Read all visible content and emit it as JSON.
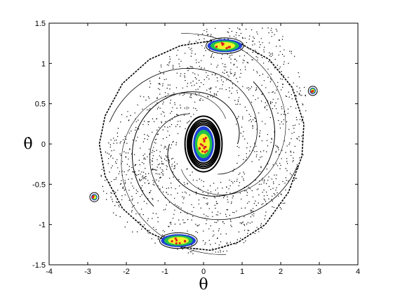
{
  "chart_data": {
    "type": "scatter",
    "title": "",
    "xlabel": "θ",
    "ylabel": "θ̇",
    "xlim": [
      -4,
      4
    ],
    "ylim": [
      -1.5,
      1.5
    ],
    "xticks": [
      "-4",
      "-3",
      "-2",
      "-1",
      "0",
      "1",
      "2",
      "3",
      "4"
    ],
    "yticks": [
      "1.5",
      "1",
      "0.5",
      "0",
      "-0.5",
      "-1",
      "-1.5"
    ],
    "grid": false,
    "colors": {
      "chaotic_sea": "#000000",
      "island_blue": "#1f3fd6",
      "island_green": "#22c24a",
      "island_yellow": "#f2f22a",
      "island_red": "#e02020"
    },
    "series": [
      {
        "color": "#000000",
        "description": "",
        "outer_orbit": [
          [
            0.2,
            1.28
          ],
          [
            -0.6,
            1.22
          ],
          [
            -1.4,
            1.05
          ],
          [
            -2.1,
            0.75
          ],
          [
            -2.55,
            0.35
          ],
          [
            -2.7,
            0.0
          ],
          [
            -2.55,
            -0.4
          ],
          [
            -2.1,
            -0.8
          ],
          [
            -1.4,
            -1.1
          ],
          [
            -0.6,
            -1.28
          ],
          [
            0.2,
            -1.32
          ],
          [
            0.9,
            -1.22
          ],
          [
            1.6,
            -1.0
          ],
          [
            2.2,
            -0.6
          ],
          [
            2.55,
            -0.15
          ],
          [
            2.6,
            0.25
          ],
          [
            2.3,
            0.7
          ],
          [
            1.7,
            1.05
          ],
          [
            0.95,
            1.25
          ],
          [
            0.2,
            1.28
          ]
        ],
        "center_rings": [
          0.33,
          0.36,
          0.39,
          0.42,
          0.48
        ]
      },
      {
        "color": "#1f3fd6",
        "description": "",
        "islands": [
          {
            "x": 0.0,
            "y": 0.0,
            "rx": 0.27,
            "ry": 0.22
          },
          {
            "x": 0.55,
            "y": 1.22,
            "rx": 0.45,
            "ry": 0.08
          },
          {
            "x": -0.65,
            "y": -1.2,
            "rx": 0.45,
            "ry": 0.08
          },
          {
            "x": 2.83,
            "y": 0.66,
            "rx": 0.08,
            "ry": 0.04
          },
          {
            "x": -2.83,
            "y": -0.66,
            "rx": 0.08,
            "ry": 0.04
          }
        ]
      }
    ]
  }
}
